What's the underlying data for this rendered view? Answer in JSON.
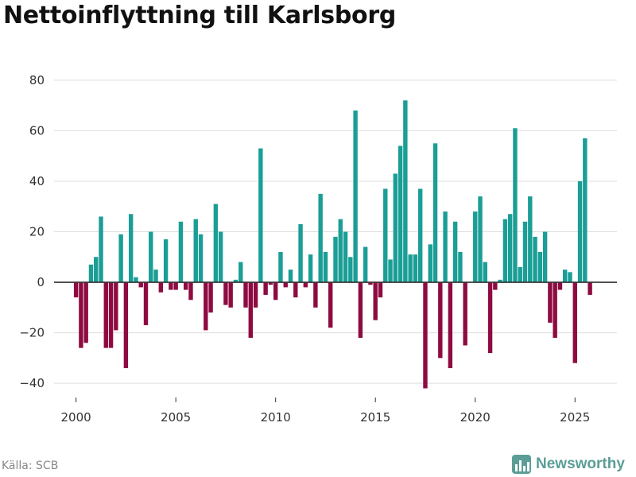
{
  "title": "Nettoinflyttning till Karlsborg",
  "source": "Källa: SCB",
  "brand": {
    "name": "Newsworthy",
    "icon": "bar-chart-logo-icon",
    "color": "#5a9e96"
  },
  "chart_data": {
    "type": "bar",
    "title": "Nettoinflyttning till Karlsborg",
    "xlabel": "",
    "ylabel": "",
    "x_ticks": [
      2000,
      2005,
      2010,
      2015,
      2020,
      2025
    ],
    "y_ticks": [
      -40,
      -20,
      0,
      20,
      40,
      60,
      80
    ],
    "ylim": [
      -45,
      85
    ],
    "xlim": [
      1998.9,
      2027.1
    ],
    "positive_color": "#1a9e96",
    "negative_color": "#8e0b41",
    "grid": true,
    "series": [
      {
        "name": "Nettoinflyttning",
        "period": "quarter",
        "start": "2000 Q1",
        "values": [
          -6,
          -26,
          -24,
          7,
          10,
          26,
          -26,
          -26,
          -19,
          19,
          -34,
          27,
          2,
          -2,
          -17,
          20,
          5,
          -4,
          17,
          -3,
          -3,
          24,
          -3,
          -7,
          25,
          19,
          -19,
          -12,
          31,
          20,
          -9,
          -10,
          1,
          8,
          -10,
          -22,
          -10,
          53,
          -5,
          -1,
          -7,
          12,
          -2,
          5,
          -6,
          23,
          -2,
          11,
          -10,
          35,
          12,
          -18,
          18,
          25,
          20,
          10,
          68,
          -22,
          14,
          -1,
          -15,
          -6,
          37,
          9,
          43,
          54,
          72,
          11,
          11,
          37,
          -42,
          15,
          55,
          -30,
          28,
          -34,
          24,
          12,
          -25,
          0,
          28,
          34,
          8,
          -28,
          -3,
          1,
          25,
          27,
          61,
          6,
          24,
          34,
          18,
          12,
          20,
          -16,
          -22,
          -3,
          5,
          4,
          -32,
          40,
          57,
          -5
        ]
      }
    ]
  }
}
